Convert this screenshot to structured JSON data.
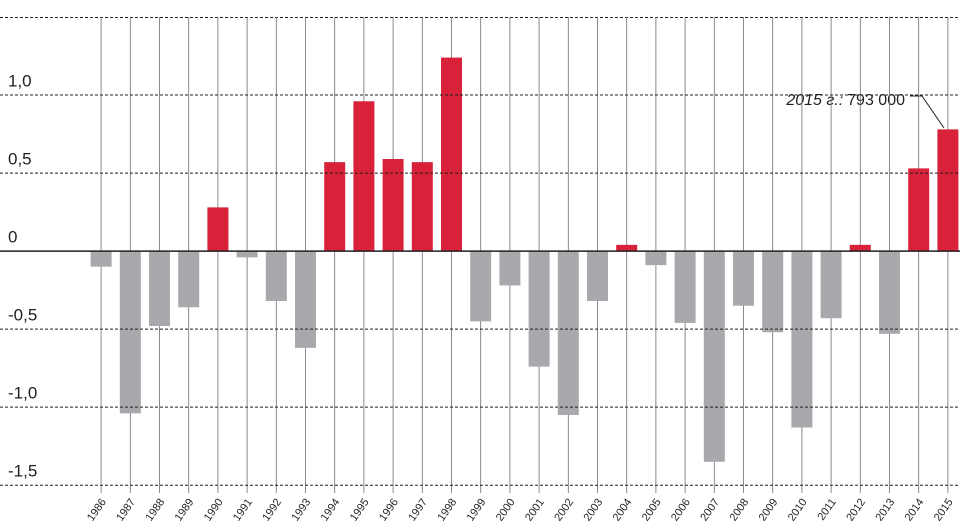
{
  "chart_data": {
    "type": "bar",
    "categories": [
      "1986",
      "1987",
      "1988",
      "1989",
      "1990",
      "1991",
      "1992",
      "1993",
      "1994",
      "1995",
      "1996",
      "1997",
      "1998",
      "1999",
      "2000",
      "2001",
      "2002",
      "2003",
      "2004",
      "2005",
      "2006",
      "2007",
      "2008",
      "2009",
      "2010",
      "2011",
      "2012",
      "2013",
      "2014",
      "2015"
    ],
    "values": [
      -0.1,
      -1.04,
      -0.48,
      -0.36,
      0.28,
      -0.04,
      -0.32,
      -0.62,
      0.57,
      0.96,
      0.59,
      0.57,
      1.24,
      -0.45,
      -0.22,
      -0.74,
      -1.05,
      -0.32,
      0.04,
      -0.09,
      -0.46,
      -1.35,
      -0.35,
      -0.52,
      -1.13,
      -0.43,
      0.04,
      -0.53,
      0.53,
      0.78
    ],
    "positive_color": "#d7223a",
    "negative_color": "#a7a9ac",
    "ylim": [
      -1.55,
      1.5
    ],
    "yticks": [
      {
        "value": -1.5,
        "label": "-1,5"
      },
      {
        "value": -1,
        "label": "-1,0"
      },
      {
        "value": -0.5,
        "label": "-0,5"
      },
      0,
      {
        "value": 0.5,
        "label": "0,5"
      },
      {
        "value": 1,
        "label": "1,0"
      }
    ],
    "grid": true,
    "annotation": {
      "label": "2015 г.:",
      "text": "793 000"
    }
  }
}
